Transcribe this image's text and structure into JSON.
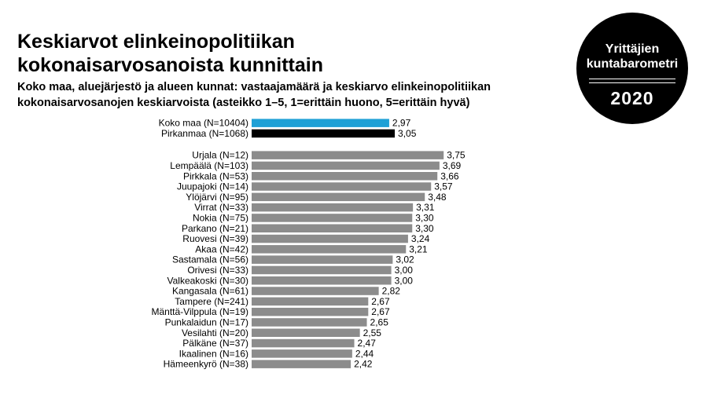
{
  "header": {
    "title_line1": "Keskiarvot elinkeinopolitiikan",
    "title_line2": "kokonaisarvosanoista kunnittain",
    "subtitle_line1": "Koko maa, aluejärjestö ja alueen kunnat: vastaajamäärä ja keskiarvo elinkeinopolitiikan",
    "subtitle_line2": "kokonaisarvosanojen keskiarvoista (asteikko 1–5,  1=erittäin huono, 5=erittäin hyvä)"
  },
  "badge": {
    "line1": "Yrittäjien",
    "line2": "kuntabarometri",
    "year": "2020"
  },
  "colors": {
    "koko_maa": "#1ea0d6",
    "pirkanmaa": "#000000",
    "municipality": "#8c8c8c"
  },
  "chart_data": {
    "type": "bar",
    "orientation": "horizontal",
    "title": "",
    "xlabel": "",
    "ylabel": "",
    "xlim": [
      1,
      5
    ],
    "grid": false,
    "legend": "none",
    "groups": [
      {
        "name": "summary",
        "categories": [
          "Koko maa (N=10404)",
          "Pirkanmaa (N=1068)"
        ],
        "values": [
          2.97,
          3.05
        ],
        "labels": [
          "2,97",
          "3,05"
        ],
        "colors": [
          "#1ea0d6",
          "#000000"
        ]
      },
      {
        "name": "municipalities",
        "categories": [
          "Urjala (N=12)",
          "Lempäälä (N=103)",
          "Pirkkala (N=53)",
          "Juupajoki (N=14)",
          "Ylöjärvi (N=95)",
          "Virrat (N=33)",
          "Nokia (N=75)",
          "Parkano (N=21)",
          "Ruovesi (N=39)",
          "Akaa (N=42)",
          "Sastamala (N=56)",
          "Orivesi (N=33)",
          "Valkeakoski (N=30)",
          "Kangasala (N=61)",
          "Tampere (N=241)",
          "Mänttä-Vilppula (N=19)",
          "Punkalaidun (N=17)",
          "Vesilahti (N=20)",
          "Pälkäne (N=37)",
          "Ikaalinen (N=16)",
          "Hämeenkyrö (N=38)"
        ],
        "values": [
          3.75,
          3.69,
          3.66,
          3.57,
          3.48,
          3.31,
          3.3,
          3.3,
          3.24,
          3.21,
          3.02,
          3.0,
          3.0,
          2.82,
          2.67,
          2.67,
          2.65,
          2.55,
          2.47,
          2.44,
          2.42
        ],
        "labels": [
          "3,75",
          "3,69",
          "3,66",
          "3,57",
          "3,48",
          "3,31",
          "3,30",
          "3,30",
          "3,24",
          "3,21",
          "3,02",
          "3,00",
          "3,00",
          "2,82",
          "2,67",
          "2,67",
          "2,65",
          "2,55",
          "2,47",
          "2,44",
          "2,42"
        ],
        "colors": [
          "#8c8c8c"
        ]
      }
    ]
  }
}
